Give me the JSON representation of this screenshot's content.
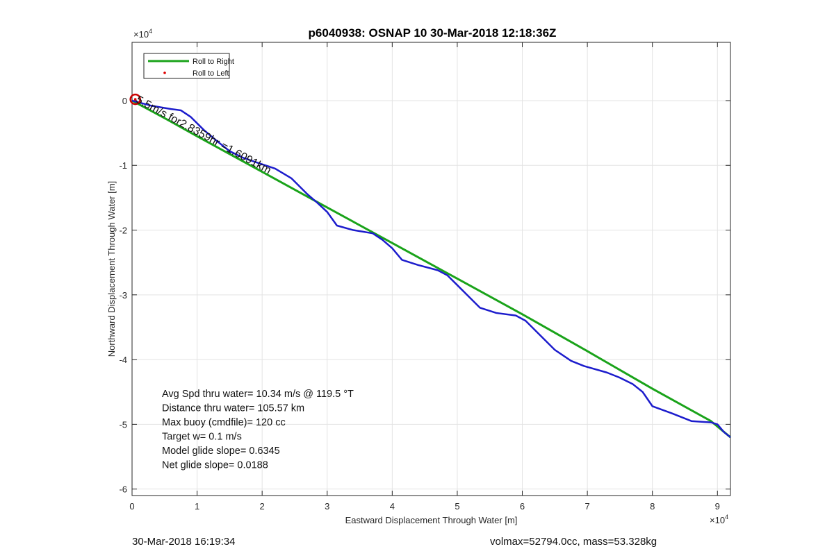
{
  "figure": {
    "title": "p6040938: OSNAP 10 30-Mar-2018 12:18:36Z",
    "footer_left": "30-Mar-2018 16:19:34",
    "footer_right": "volmax=52794.0cc, mass=53.328kg"
  },
  "chart_data": {
    "type": "line",
    "title": "p6040938: OSNAP 10 30-Mar-2018 12:18:36Z",
    "xlabel": "Eastward Displacement Through Water [m]",
    "ylabel": "Northward Displacement Through Water [m]",
    "x_exponent": "×10^4",
    "y_exponent": "×10^4",
    "xlim": [
      0,
      9.2
    ],
    "ylim": [
      -6.1,
      0.9
    ],
    "x_ticks": [
      0,
      1,
      2,
      3,
      4,
      5,
      6,
      7,
      8,
      9
    ],
    "y_ticks": [
      0,
      -1,
      -2,
      -3,
      -4,
      -5,
      -6
    ],
    "x_tick_labels": [
      "0",
      "1",
      "2",
      "3",
      "4",
      "5",
      "6",
      "7",
      "8",
      "9"
    ],
    "y_tick_labels": [
      "0",
      "-1",
      "-2",
      "-3",
      "-4",
      "-5",
      "-6"
    ],
    "x_exponent_label": "×10",
    "y_exponent_label": "×10",
    "exponent_power": "4",
    "grid": true,
    "legend_placement": "top-left",
    "legend": [
      {
        "label": "Roll to Right",
        "color": "#1aa31a",
        "style": "line"
      },
      {
        "label": "Roll to Left",
        "color": "#e00000",
        "style": "dot"
      }
    ],
    "series": [
      {
        "name": "Roll to Right",
        "color": "#1aa31a",
        "x": [
          0,
          0.5,
          1.0,
          2.0,
          3.0,
          4.0,
          5.0,
          6.0,
          7.0,
          8.0,
          8.9,
          9.2
        ],
        "y": [
          0,
          -0.27,
          -0.55,
          -1.1,
          -1.65,
          -2.2,
          -2.75,
          -3.3,
          -3.87,
          -4.45,
          -4.95,
          -5.2
        ]
      },
      {
        "name": "track",
        "color": "#1c1ccc",
        "x": [
          0,
          0.3,
          0.6,
          0.75,
          0.9,
          1.1,
          1.3,
          1.5,
          1.7,
          1.9,
          2.2,
          2.45,
          2.7,
          2.85,
          3.0,
          3.15,
          3.4,
          3.7,
          3.85,
          4.0,
          4.15,
          4.4,
          4.7,
          4.85,
          5.0,
          5.2,
          5.35,
          5.6,
          5.9,
          6.05,
          6.2,
          6.5,
          6.75,
          6.95,
          7.3,
          7.5,
          7.7,
          7.85,
          8.0,
          8.3,
          8.6,
          8.9,
          9.0,
          9.1,
          9.2
        ],
        "y": [
          0,
          -0.08,
          -0.13,
          -0.15,
          -0.25,
          -0.45,
          -0.62,
          -0.78,
          -0.88,
          -0.95,
          -1.05,
          -1.2,
          -1.45,
          -1.58,
          -1.72,
          -1.93,
          -2.0,
          -2.05,
          -2.15,
          -2.28,
          -2.46,
          -2.54,
          -2.62,
          -2.7,
          -2.85,
          -3.05,
          -3.2,
          -3.28,
          -3.32,
          -3.4,
          -3.55,
          -3.85,
          -4.02,
          -4.1,
          -4.2,
          -4.28,
          -4.38,
          -4.5,
          -4.72,
          -4.83,
          -4.95,
          -4.97,
          -5.0,
          -5.12,
          -5.2
        ]
      }
    ],
    "start_marker": {
      "x": 0.05,
      "y": 0.02,
      "color": "#cc0000"
    },
    "overlay_text": "5.5m/s for2.8359hr =1.6091km",
    "annotations": [
      "Avg Spd thru water= 10.34 m/s @ 119.5 °T",
      "Distance thru water= 105.57 km",
      "Max buoy (cmdfile)= 120 cc",
      "Target w= 0.1 m/s",
      "Model glide slope= 0.6345",
      "Net glide slope= 0.0188"
    ]
  }
}
